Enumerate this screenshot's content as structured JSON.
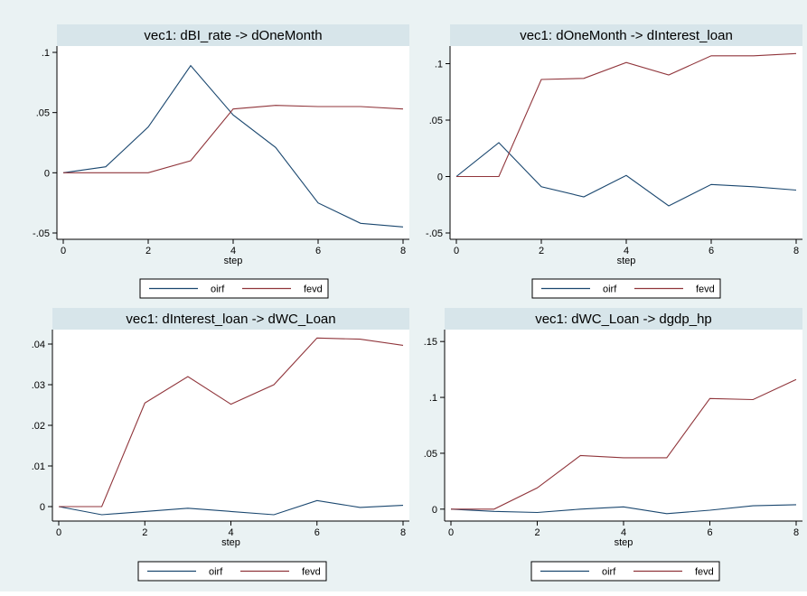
{
  "chart_data": [
    {
      "type": "line",
      "title": "vec1: dBI_rate -> dOneMonth",
      "xlabel": "step",
      "ylabel": "",
      "x": [
        0,
        1,
        2,
        3,
        4,
        5,
        6,
        7,
        8
      ],
      "xlim": [
        0,
        8
      ],
      "ylim": [
        -0.05,
        0.1
      ],
      "xticks": [
        0,
        2,
        4,
        6,
        8
      ],
      "yticks": [
        -0.05,
        0,
        0.05,
        0.1
      ],
      "yticklabels": [
        "-.05",
        "0",
        ".05",
        ".1"
      ],
      "series": [
        {
          "name": "oirf",
          "values": [
            0,
            0.005,
            0.038,
            0.089,
            0.048,
            0.021,
            -0.025,
            -0.042,
            -0.045
          ]
        },
        {
          "name": "fevd",
          "values": [
            0,
            0,
            0,
            0.01,
            0.053,
            0.056,
            0.055,
            0.055,
            0.053
          ]
        }
      ],
      "legend": "bottom"
    },
    {
      "type": "line",
      "title": "vec1: dOneMonth -> dInterest_loan",
      "xlabel": "step",
      "ylabel": "",
      "x": [
        0,
        1,
        2,
        3,
        4,
        5,
        6,
        7,
        8
      ],
      "xlim": [
        0,
        8
      ],
      "ylim": [
        -0.05,
        0.11
      ],
      "xticks": [
        0,
        2,
        4,
        6,
        8
      ],
      "yticks": [
        -0.05,
        0,
        0.05,
        0.1
      ],
      "yticklabels": [
        "-.05",
        "0",
        ".05",
        ".1"
      ],
      "series": [
        {
          "name": "oirf",
          "values": [
            0,
            0.03,
            -0.009,
            -0.018,
            0.001,
            -0.026,
            -0.007,
            -0.009,
            -0.012
          ]
        },
        {
          "name": "fevd",
          "values": [
            0,
            0,
            0.086,
            0.087,
            0.101,
            0.09,
            0.107,
            0.107,
            0.109
          ]
        }
      ],
      "legend": "bottom"
    },
    {
      "type": "line",
      "title": "vec1: dInterest_loan -> dWC_Loan",
      "xlabel": "step",
      "ylabel": "",
      "x": [
        0,
        1,
        2,
        3,
        4,
        5,
        6,
        7,
        8
      ],
      "xlim": [
        0,
        8
      ],
      "ylim": [
        -0.002,
        0.042
      ],
      "xticks": [
        0,
        2,
        4,
        6,
        8
      ],
      "yticks": [
        0,
        0.01,
        0.02,
        0.03,
        0.04
      ],
      "yticklabels": [
        "0",
        ".01",
        ".02",
        ".03",
        ".04"
      ],
      "series": [
        {
          "name": "oirf",
          "values": [
            0,
            -0.002,
            -0.0012,
            -0.0004,
            -0.0012,
            -0.002,
            0.0015,
            -0.0002,
            0.0003
          ]
        },
        {
          "name": "fevd",
          "values": [
            0,
            0,
            0.0255,
            0.032,
            0.0252,
            0.03,
            0.0415,
            0.0412,
            0.0397
          ]
        }
      ],
      "legend": "bottom"
    },
    {
      "type": "line",
      "title": "vec1: dWC_Loan -> dgdp_hp",
      "xlabel": "step",
      "ylabel": "",
      "x": [
        0,
        1,
        2,
        3,
        4,
        5,
        6,
        7,
        8
      ],
      "xlim": [
        0,
        8
      ],
      "ylim": [
        -0.005,
        0.155
      ],
      "xticks": [
        0,
        2,
        4,
        6,
        8
      ],
      "yticks": [
        0,
        0.05,
        0.1,
        0.15
      ],
      "yticklabels": [
        "0",
        ".05",
        ".1",
        ".15"
      ],
      "series": [
        {
          "name": "oirf",
          "values": [
            0,
            -0.002,
            -0.003,
            0,
            0.002,
            -0.004,
            -0.001,
            0.003,
            0.004
          ]
        },
        {
          "name": "fevd",
          "values": [
            0,
            0,
            0.019,
            0.048,
            0.046,
            0.046,
            0.099,
            0.098,
            0.116
          ]
        }
      ],
      "legend": "bottom"
    }
  ],
  "colors": {
    "background": "#eaf2f3",
    "title_bar": "#d7e5ea",
    "plot_area": "#ffffff",
    "oirf": "#1a476f",
    "fevd": "#90353b"
  }
}
